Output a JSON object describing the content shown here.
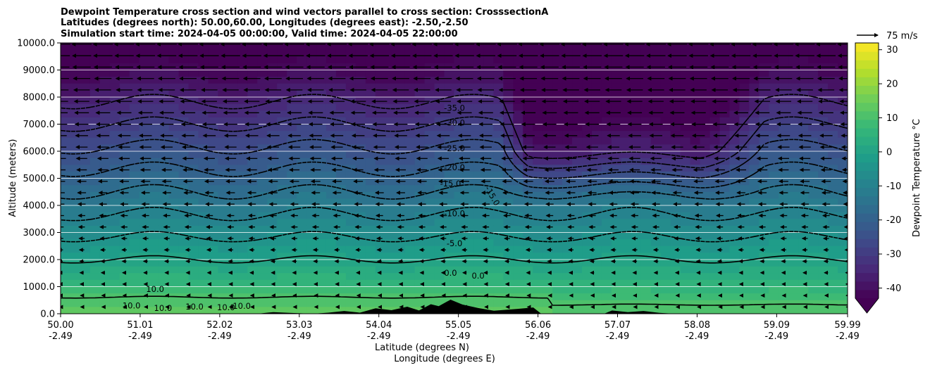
{
  "chart_data": {
    "type": "heatmap",
    "title_lines": [
      "Dewpoint Temperature cross section and wind vectors parallel to cross section: CrosssectionA",
      "Latitudes (degrees north): 50.00,60.00, Longitudes (degrees east): -2.50,-2.50",
      "Simulation start time: 2024-04-05 00:00:00, Valid time: 2024-04-05 22:00:00"
    ],
    "xlabel_lines": [
      "Latitude (degrees N)",
      "Longitude (degrees E)"
    ],
    "ylabel": "Altitude (meters)",
    "xlim": [
      50.0,
      59.99
    ],
    "ylim": [
      0,
      10000
    ],
    "x_ticks": [
      {
        "lat": "50.00",
        "lon": "-2.49",
        "value": 50.0
      },
      {
        "lat": "51.01",
        "lon": "-2.49",
        "value": 51.01
      },
      {
        "lat": "52.02",
        "lon": "-2.49",
        "value": 52.02
      },
      {
        "lat": "53.03",
        "lon": "-2.49",
        "value": 53.03
      },
      {
        "lat": "54.04",
        "lon": "-2.49",
        "value": 54.04
      },
      {
        "lat": "55.05",
        "lon": "-2.49",
        "value": 55.05
      },
      {
        "lat": "56.06",
        "lon": "-2.49",
        "value": 56.06
      },
      {
        "lat": "57.07",
        "lon": "-2.49",
        "value": 57.07
      },
      {
        "lat": "58.08",
        "lon": "-2.49",
        "value": 58.08
      },
      {
        "lat": "59.09",
        "lon": "-2.49",
        "value": 59.09
      },
      {
        "lat": "59.99",
        "lon": "-2.49",
        "value": 59.99
      }
    ],
    "y_ticks": [
      {
        "label": "0.0",
        "value": 0
      },
      {
        "label": "1000.0",
        "value": 1000
      },
      {
        "label": "2000.0",
        "value": 2000
      },
      {
        "label": "3000.0",
        "value": 3000
      },
      {
        "label": "4000.0",
        "value": 4000
      },
      {
        "label": "5000.0",
        "value": 5000
      },
      {
        "label": "6000.0",
        "value": 6000
      },
      {
        "label": "7000.0",
        "value": 7000
      },
      {
        "label": "8000.0",
        "value": 8000
      },
      {
        "label": "9000.0",
        "value": 9000
      },
      {
        "label": "10000.0",
        "value": 10000
      }
    ],
    "grid": "horizontal",
    "colorbar": {
      "label": "Dewpoint Temperature $^\\circ$C",
      "display_label": "Dewpoint Temperature °C",
      "min": -43,
      "max": 32,
      "step": 2.5,
      "ticks": [
        -40,
        -30,
        -20,
        -10,
        0,
        10,
        20,
        30
      ],
      "extend": "min",
      "colormap": "viridis"
    },
    "quiver_key": {
      "label": "75 m/s",
      "value": 75
    },
    "wind_direction": "toward lower latitude (southward)",
    "field": {
      "surface_dewpoint_c": 12,
      "lapse_c_per_km": 6.0,
      "dry_intrusion": {
        "center_lat": 56.8,
        "lower_bound_m": 4300,
        "west_edge_lat": 55.6,
        "east_edge_lat": 58.7
      }
    },
    "contours": [
      {
        "level": -35.0,
        "label": "-35.0",
        "style": "dashed",
        "label_lat": 55.0,
        "label_alt": 7500
      },
      {
        "level": -30.0,
        "label": "-30.0",
        "style": "dashed",
        "label_lat": 55.0,
        "label_alt": 6950
      },
      {
        "level": -25.0,
        "label": "-25.0",
        "style": "dashed",
        "label_lat": 55.0,
        "label_alt": 6000
      },
      {
        "level": -20.0,
        "label": "-20.0",
        "style": "dashed",
        "label_lat": 55.0,
        "label_alt": 5300
      },
      {
        "level": -15.0,
        "label": "-15.0",
        "style": "dashed",
        "label_lat": 54.95,
        "label_alt": 4700
      },
      {
        "level": -15.0,
        "label": "-15.0",
        "style": "dashed",
        "label_lat": 55.45,
        "label_alt": 4300,
        "rotated": true
      },
      {
        "level": -10.0,
        "label": "-10.0",
        "style": "dashed",
        "label_lat": 55.0,
        "label_alt": 3600
      },
      {
        "level": -5.0,
        "label": "-5.0",
        "style": "dashed",
        "label_lat": 55.0,
        "label_alt": 2500
      },
      {
        "level": 0.0,
        "label": "0.0",
        "style": "solid",
        "label_lat": 54.95,
        "label_alt": 1400
      },
      {
        "level": 0.0,
        "label": "0.0",
        "style": "solid",
        "label_lat": 55.3,
        "label_alt": 1300
      },
      {
        "level": 10.0,
        "label": "10.0",
        "style": "solid",
        "label_lat": 51.2,
        "label_alt": 800
      },
      {
        "level": 10.0,
        "label": "10.0",
        "style": "solid",
        "label_lat": 50.9,
        "label_alt": 200
      },
      {
        "level": 10.0,
        "label": "10.0",
        "style": "solid",
        "label_lat": 51.3,
        "label_alt": 100
      },
      {
        "level": 10.0,
        "label": "10.0",
        "style": "solid",
        "label_lat": 51.7,
        "label_alt": 150
      },
      {
        "level": 10.0,
        "label": "10.0",
        "style": "solid",
        "label_lat": 52.1,
        "label_alt": 130
      },
      {
        "level": 10.0,
        "label": "10.0",
        "style": "solid",
        "label_lat": 52.3,
        "label_alt": 180
      }
    ],
    "terrain_m": [
      [
        50.0,
        0
      ],
      [
        52.5,
        0
      ],
      [
        52.7,
        60
      ],
      [
        52.9,
        30
      ],
      [
        53.2,
        0
      ],
      [
        53.4,
        40
      ],
      [
        53.6,
        100
      ],
      [
        53.8,
        40
      ],
      [
        54.0,
        200
      ],
      [
        54.2,
        130
      ],
      [
        54.4,
        260
      ],
      [
        54.55,
        120
      ],
      [
        54.7,
        350
      ],
      [
        54.8,
        280
      ],
      [
        54.95,
        520
      ],
      [
        55.1,
        340
      ],
      [
        55.3,
        210
      ],
      [
        55.5,
        110
      ],
      [
        55.8,
        180
      ],
      [
        56.0,
        230
      ],
      [
        56.1,
        0
      ],
      [
        56.9,
        0
      ],
      [
        57.0,
        120
      ],
      [
        57.2,
        60
      ],
      [
        57.4,
        100
      ],
      [
        57.6,
        30
      ],
      [
        57.8,
        0
      ],
      [
        59.99,
        0
      ]
    ]
  }
}
